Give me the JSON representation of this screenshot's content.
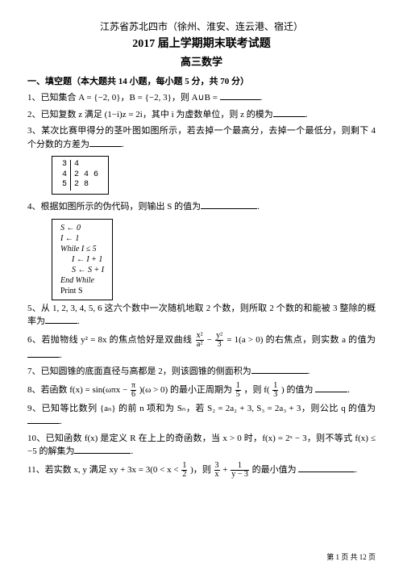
{
  "header": {
    "line1": "江苏省苏北四市（徐州、淮安、连云港、宿迁）",
    "line2": "2017 届上学期期末联考试题",
    "line3": "高三数学"
  },
  "section1_title": "一、填空题（本大题共 14 小题，每小题 5 分，共 70 分）",
  "q1": {
    "pre": "1、已知集合 A = {−2, 0}，B = {−2, 3}，则 A∪B = ",
    "post": "."
  },
  "q2": {
    "pre": "2、已知复数 z 满足 (1−i)z = 2i，其中 i 为虚数单位，则 z 的模为",
    "post": "."
  },
  "q3": {
    "pre": "3、某次比赛甲得分的茎叶图如图所示，若去掉一个最高分，去掉一个最低分，则剩下 4 个分数的方差为",
    "post": "."
  },
  "stem_leaf": {
    "rows": [
      {
        "stem": "3",
        "leaves": "4"
      },
      {
        "stem": "4",
        "leaves": "2  4  6"
      },
      {
        "stem": "5",
        "leaves": "2  8"
      }
    ]
  },
  "q4": {
    "pre": "4、根据如图所示的伪代码，则输出 S 的值为",
    "post": "."
  },
  "pseudo": {
    "l1": "S ← 0",
    "l2": "I ← 1",
    "l3": "While  I ≤ 5",
    "l4": "I ← I + 1",
    "l5": "S ← S + I",
    "l6": "End  While",
    "l7": "Print  S"
  },
  "q5": {
    "pre": "5、从 1, 2, 3, 4, 5, 6 这六个数中一次随机地取 2 个数，则所取 2 个数的和能被 3 整除的概率为",
    "post": "."
  },
  "q6": {
    "pre": "6、若抛物线 y² = 8x 的焦点恰好是双曲线 ",
    "mid": " = 1(a > 0) 的右焦点，则实数 a 的值为",
    "post": ".",
    "frac1_num": "x²",
    "frac1_den": "a²",
    "frac2_num": "y²",
    "frac2_den": "3"
  },
  "q7": {
    "pre": "7、已知圆锥的底面直径与高都是 2，则该圆锥的侧面积为",
    "post": "."
  },
  "q8": {
    "pre": "8、若函数 f(x) = sin(ωπx − ",
    "mid1": ")(ω > 0) 的最小正周期为 ",
    "mid2": "，则 f(",
    "mid3": ") 的值为",
    "post": ".",
    "f1n": "π",
    "f1d": "6",
    "f2n": "1",
    "f2d": "5",
    "f3n": "1",
    "f3d": "3"
  },
  "q9": {
    "pre": "9、已知等比数列 {aₙ} 的前 n 项和为 Sₙ，若 S₂ = 2a₂ + 3, S₃ = 2a₃ + 3，则公比 q 的值为",
    "post": "."
  },
  "q10": {
    "pre": "10、已知函数 f(x) 是定义 R 在上上的奇函数，当 x > 0 时，f(x) = 2ˣ − 3，则不等式 f(x) ≤ −5 的解集为",
    "post": "."
  },
  "q11": {
    "pre": "11、若实数 x, y 满足 xy + 3x = 3(0 < x < ",
    "mid1": ")，则 ",
    "mid2": " + ",
    "mid3": " 的最小值为",
    "post": ".",
    "fa_n": "1",
    "fa_d": "2",
    "fb_n": "3",
    "fb_d": "x",
    "fc_n": "1",
    "fc_d": "y − 3"
  },
  "footer": "第 1 页  共 12 页"
}
